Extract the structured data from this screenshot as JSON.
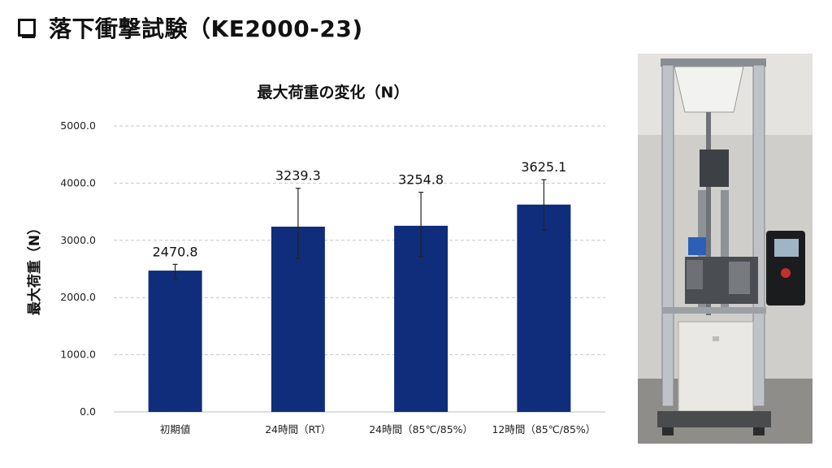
{
  "slide": {
    "title": "落下衝撃試験（KE2000-23)"
  },
  "chart_data": {
    "type": "bar",
    "title": "最大荷重の変化（N）",
    "xlabel": "",
    "ylabel": "最大荷重（N）",
    "categories": [
      "初期値",
      "24時間（RT）",
      "24時間（85℃/85%）",
      "12時間（85℃/85%）"
    ],
    "values": [
      2470.8,
      3239.3,
      3254.8,
      3625.1
    ],
    "data_labels": [
      "2470.8",
      "3239.3",
      "3254.8",
      "3625.1"
    ],
    "error_low": [
      2330,
      2690,
      2720,
      3180
    ],
    "error_high": [
      2580,
      3910,
      3840,
      4060
    ],
    "ylim": [
      0,
      5000
    ],
    "yticks": [
      "0.0",
      "1000.0",
      "2000.0",
      "3000.0",
      "4000.0",
      "5000.0"
    ],
    "grid": true,
    "bar_color": "#0f2d7a"
  },
  "photo": {
    "description": "drop impact testing machine"
  }
}
